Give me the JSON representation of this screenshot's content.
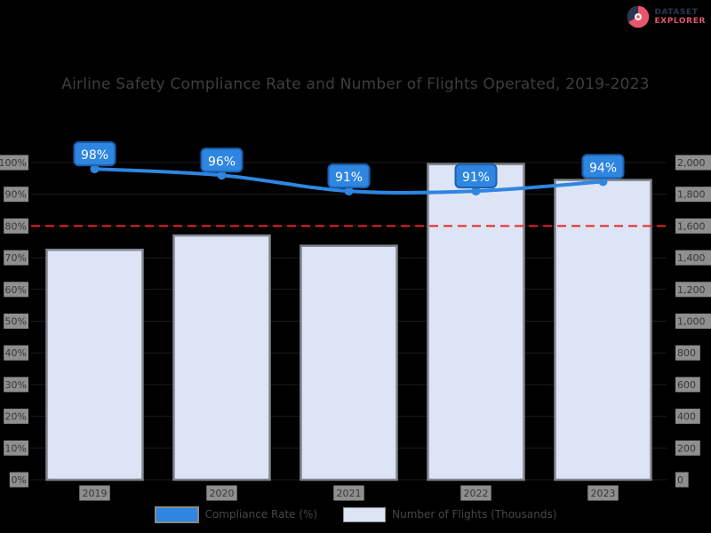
{
  "page": {
    "background": "#000000"
  },
  "logo": {
    "line1": "DATASET",
    "line2": "EXPLORER",
    "icon": "pie-chart-logo-icon",
    "colors": {
      "line1": "#2b3550",
      "line2": "#e0556c",
      "circle": "#e8566d",
      "wedge": "#2b3550",
      "center": "#f4f6fb"
    }
  },
  "chart_data": {
    "type": "combo_bar_line",
    "title": "Airline Safety Compliance Rate and Number of Flights Operated, 2019-2023",
    "categories": [
      "2019",
      "2020",
      "2021",
      "2022",
      "2023"
    ],
    "series": [
      {
        "name": "Compliance Rate (%)",
        "type": "line",
        "axis": "left",
        "values": [
          98,
          96,
          91,
          91,
          94
        ],
        "labels": [
          "98%",
          "96%",
          "91%",
          "91%",
          "94%"
        ],
        "color": "#2e86e0",
        "badge_fill": "#2e86e0",
        "badge_border": "#1a5fae",
        "badge_text_color": "#ffffff"
      },
      {
        "name": "Number of Flights (Thousands)",
        "type": "bar",
        "axis": "right",
        "values": [
          1450,
          1540,
          1475,
          1990,
          1890
        ],
        "color": "#dce4f5",
        "border_color": "#81868f"
      }
    ],
    "left_axis": {
      "min": 0,
      "max": 100,
      "step": 10,
      "format": "percent"
    },
    "right_axis": {
      "min": 0,
      "max": 2000,
      "step": 200,
      "format": "thousands"
    },
    "target_line": {
      "value": 80,
      "color": "#e82525",
      "style": "dashed"
    },
    "legend_position": "bottom",
    "grid": true,
    "tick_label_bbox_color": "#8f8f8f",
    "tick_label_text_color": "#383838"
  }
}
